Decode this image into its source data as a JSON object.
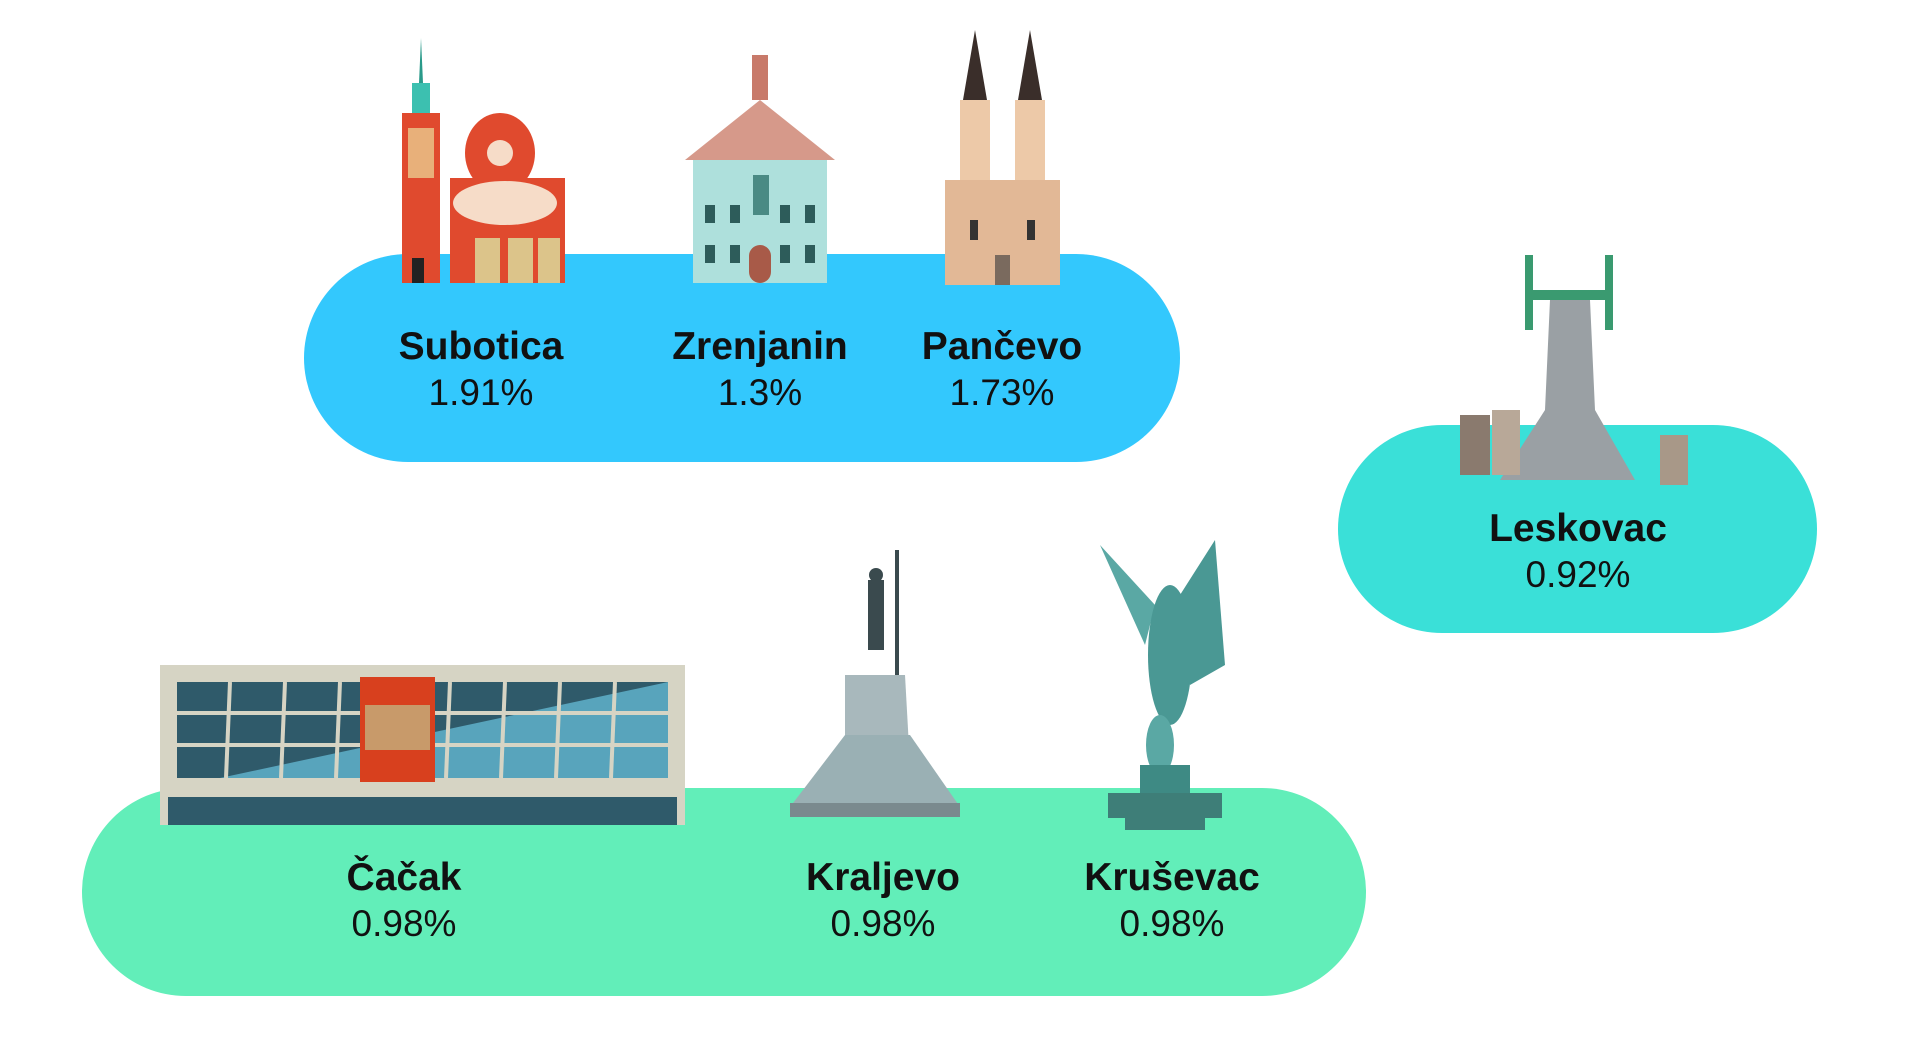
{
  "groups": [
    {
      "color": "#33c8fd",
      "cities": [
        {
          "name": "Subotica",
          "percent": "1.91%"
        },
        {
          "name": "Zrenjanin",
          "percent": "1.3%"
        },
        {
          "name": "Pančevo",
          "percent": "1.73%"
        }
      ]
    },
    {
      "color": "#3ae0d8",
      "cities": [
        {
          "name": "Leskovac",
          "percent": "0.92%"
        }
      ]
    },
    {
      "color": "#62eeb9",
      "cities": [
        {
          "name": "Čačak",
          "percent": "0.98%"
        },
        {
          "name": "Kraljevo",
          "percent": "0.98%"
        },
        {
          "name": "Kruševac",
          "percent": "0.98%"
        }
      ]
    }
  ]
}
